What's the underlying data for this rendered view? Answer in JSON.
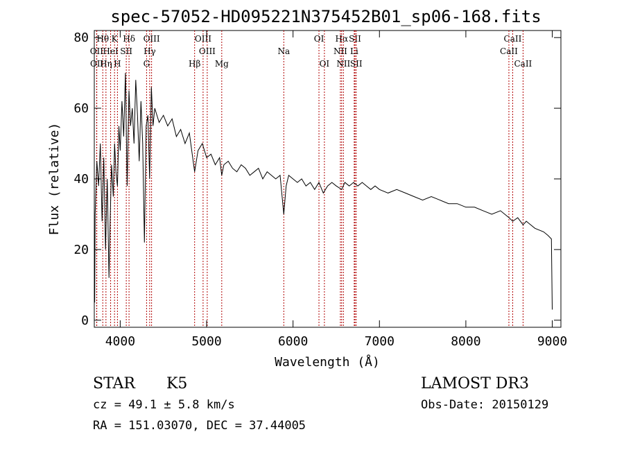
{
  "chart_data": {
    "type": "line",
    "title": "spec-57052-HD095221N375452B01_sp06-168.fits",
    "xlabel": "Wavelength (Å)",
    "ylabel": "Flux (relative)",
    "xlim": [
      3700,
      9100
    ],
    "ylim": [
      -2,
      82
    ],
    "x_ticks": [
      4000,
      5000,
      6000,
      7000,
      8000,
      9000
    ],
    "y_ticks": [
      0,
      20,
      40,
      60,
      80
    ],
    "grid": false,
    "series": [
      {
        "x": [
          3700,
          3705,
          3710,
          3730,
          3750,
          3770,
          3790,
          3810,
          3830,
          3850,
          3870,
          3885,
          3900,
          3920,
          3935,
          3950,
          3968,
          3985,
          4000,
          4020,
          4040,
          4060,
          4080,
          4101,
          4120,
          4140,
          4160,
          4180,
          4200,
          4220,
          4240,
          4260,
          4280,
          4300,
          4320,
          4340,
          4360,
          4380,
          4400,
          4450,
          4500,
          4550,
          4600,
          4650,
          4700,
          4750,
          4800,
          4861,
          4900,
          4950,
          5000,
          5050,
          5100,
          5150,
          5175,
          5200,
          5250,
          5300,
          5350,
          5400,
          5450,
          5500,
          5550,
          5600,
          5650,
          5700,
          5750,
          5800,
          5850,
          5893,
          5920,
          5950,
          6000,
          6050,
          6100,
          6150,
          6200,
          6250,
          6300,
          6350,
          6400,
          6450,
          6500,
          6563,
          6600,
          6650,
          6700,
          6750,
          6800,
          6850,
          6900,
          6950,
          7000,
          7100,
          7200,
          7300,
          7400,
          7500,
          7600,
          7700,
          7800,
          7900,
          8000,
          8100,
          8200,
          8300,
          8400,
          8500,
          8542,
          8600,
          8662,
          8700,
          8800,
          8900,
          8950,
          8990,
          9000
        ],
        "y": [
          18,
          5,
          30,
          45,
          38,
          50,
          28,
          46,
          20,
          40,
          12,
          30,
          44,
          35,
          50,
          42,
          38,
          55,
          48,
          62,
          52,
          70,
          38,
          65,
          55,
          60,
          50,
          68,
          58,
          45,
          62,
          50,
          22,
          55,
          58,
          40,
          66,
          55,
          60,
          56,
          58,
          55,
          57,
          52,
          54,
          50,
          53,
          42,
          48,
          50,
          46,
          47,
          44,
          46,
          41,
          44,
          45,
          43,
          42,
          44,
          43,
          41,
          42,
          43,
          40,
          42,
          41,
          40,
          41,
          30,
          38,
          41,
          40,
          39,
          40,
          38,
          39,
          37,
          39,
          36,
          38,
          39,
          38,
          37,
          39,
          38,
          39,
          38,
          39,
          38,
          37,
          38,
          37,
          36,
          37,
          36,
          35,
          34,
          35,
          34,
          33,
          33,
          32,
          32,
          31,
          30,
          31,
          29,
          28,
          29,
          27,
          28,
          26,
          25,
          24,
          23,
          3
        ]
      }
    ],
    "line_markers": [
      {
        "label": "Hθ",
        "wavelength": 3798,
        "row": 0
      },
      {
        "label": "OII",
        "wavelength": 3727,
        "row": 1
      },
      {
        "label": "OII",
        "wavelength": 3729,
        "row": 2
      },
      {
        "label": "K",
        "wavelength": 3934,
        "row": 0
      },
      {
        "label": "HeI",
        "wavelength": 3889,
        "row": 1
      },
      {
        "label": "Hη",
        "wavelength": 3835,
        "row": 2
      },
      {
        "label": "Hδ",
        "wavelength": 4102,
        "row": 0
      },
      {
        "label": "SII",
        "wavelength": 4070,
        "row": 1
      },
      {
        "label": "H",
        "wavelength": 3968,
        "row": 2
      },
      {
        "label": "OIII",
        "wavelength": 4363,
        "row": 0
      },
      {
        "label": "Hγ",
        "wavelength": 4341,
        "row": 1
      },
      {
        "label": "G",
        "wavelength": 4305,
        "row": 2
      },
      {
        "label": "OIII",
        "wavelength": 4959,
        "row": 0
      },
      {
        "label": "OIII",
        "wavelength": 5007,
        "row": 1
      },
      {
        "label": "Hβ",
        "wavelength": 4861,
        "row": 2
      },
      {
        "label": "Mg",
        "wavelength": 5175,
        "row": 2
      },
      {
        "label": "Na",
        "wavelength": 5893,
        "row": 1
      },
      {
        "label": "OI",
        "wavelength": 6300,
        "row": 0
      },
      {
        "label": "OI",
        "wavelength": 6363,
        "row": 2
      },
      {
        "label": "Hα",
        "wavelength": 6563,
        "row": 0
      },
      {
        "label": "NII",
        "wavelength": 6548,
        "row": 1
      },
      {
        "label": "NII",
        "wavelength": 6583,
        "row": 2
      },
      {
        "label": "SII",
        "wavelength": 6717,
        "row": 0
      },
      {
        "label": "Li",
        "wavelength": 6708,
        "row": 1
      },
      {
        "label": "SII",
        "wavelength": 6731,
        "row": 2
      },
      {
        "label": "CaII",
        "wavelength": 8542,
        "row": 0
      },
      {
        "label": "CaII",
        "wavelength": 8498,
        "row": 1
      },
      {
        "label": "CaII",
        "wavelength": 8662,
        "row": 2
      }
    ]
  },
  "info": {
    "object_class": "STAR",
    "subclass": "K5",
    "survey": "LAMOST DR3",
    "redshift": "cz = 49.1 ± 5.8 km/s",
    "obs_date": "Obs-Date: 20150129",
    "coords": "RA = 151.03070, DEC =  37.44005"
  }
}
